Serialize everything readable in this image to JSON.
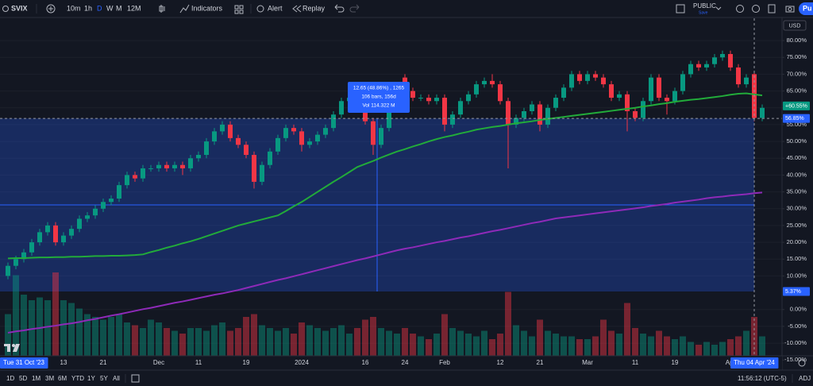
{
  "toolbar": {
    "symbol": "SVIX",
    "intervals": [
      "10m",
      "1h",
      "D",
      "W",
      "M",
      "12M"
    ],
    "indicators": "Indicators",
    "alert": "Alert",
    "replay": "Replay",
    "layout_name": "PUBLIC",
    "save": "Save",
    "publish": "Pu"
  },
  "chart_data": {
    "type": "candlestick",
    "currency": "USD",
    "categories": [
      "Tue 31 Oct '23",
      null,
      null,
      null,
      null,
      null,
      null,
      "13",
      null,
      null,
      null,
      null,
      "21",
      null,
      null,
      null,
      null,
      null,
      null,
      "Dec",
      null,
      null,
      null,
      null,
      "11",
      null,
      null,
      null,
      null,
      null,
      "19",
      null,
      null,
      null,
      null,
      null,
      null,
      "2024",
      null,
      null,
      null,
      null,
      null,
      null,
      null,
      "16",
      null,
      null,
      null,
      null,
      "24",
      null,
      null,
      null,
      null,
      "Feb",
      null,
      null,
      null,
      null,
      null,
      null,
      "12",
      null,
      null,
      null,
      null,
      "21",
      null,
      null,
      null,
      null,
      null,
      "Mar",
      null,
      null,
      null,
      null,
      null,
      "11",
      null,
      null,
      null,
      null,
      "19",
      null,
      null,
      null,
      null,
      null,
      null,
      "Apr",
      null,
      null,
      "Thu 04 Apr '24",
      null
    ],
    "series": [
      {
        "type": "candlestick",
        "up_color": "#089981",
        "down_color": "#f23645",
        "open": [
          10,
          13,
          15,
          17,
          20,
          23,
          25,
          20,
          22,
          24,
          27,
          28,
          30,
          32,
          33,
          37,
          40,
          39,
          42,
          42,
          43,
          42,
          43,
          42,
          45,
          46,
          50,
          53,
          55,
          51,
          49,
          46,
          38,
          43,
          47,
          51,
          54,
          53,
          49,
          50,
          52,
          54,
          58,
          62,
          63,
          61,
          56,
          49,
          54,
          61,
          69,
          65,
          63,
          63,
          62,
          63,
          55,
          58,
          62,
          64,
          67,
          68,
          67,
          62,
          55,
          57,
          59,
          61,
          55,
          60,
          63,
          66,
          70,
          68,
          70,
          69,
          67,
          63,
          64,
          59,
          57,
          62,
          69,
          63,
          62,
          65,
          70,
          73,
          72,
          73,
          75,
          76,
          72,
          67,
          70,
          57
        ],
        "high": [
          14,
          16,
          18,
          21,
          24,
          26,
          26,
          23,
          25,
          28,
          29,
          31,
          33,
          34,
          38,
          41,
          41,
          43,
          43,
          44,
          44,
          44,
          44,
          46,
          47,
          51,
          54,
          56,
          56,
          52,
          50,
          47,
          44,
          48,
          52,
          55,
          55,
          54,
          51,
          53,
          55,
          59,
          63,
          64,
          64,
          62,
          57,
          55,
          62,
          65,
          70,
          66,
          64,
          64,
          64,
          64,
          59,
          63,
          65,
          68,
          69,
          70,
          68,
          63,
          58,
          60,
          62,
          62,
          61,
          64,
          67,
          71,
          71,
          71,
          71,
          70,
          68,
          65,
          65,
          60,
          63,
          70,
          70,
          64,
          66,
          71,
          74,
          74,
          74,
          76,
          77,
          77,
          73,
          70,
          71,
          61
        ],
        "low": [
          9,
          12,
          14,
          16,
          19,
          22,
          19,
          19,
          21,
          23,
          26,
          27,
          29,
          31,
          32,
          36,
          38,
          38,
          41,
          41,
          41,
          41,
          40,
          41,
          44,
          45,
          49,
          52,
          50,
          48,
          45,
          36,
          37,
          42,
          46,
          50,
          52,
          47,
          48,
          49,
          51,
          53,
          57,
          61,
          60,
          55,
          46,
          48,
          53,
          60,
          64,
          62,
          62,
          61,
          61,
          53,
          54,
          57,
          61,
          63,
          66,
          66,
          61,
          42,
          54,
          56,
          58,
          53,
          54,
          59,
          62,
          65,
          67,
          67,
          68,
          66,
          62,
          62,
          53,
          56,
          56,
          61,
          62,
          58,
          61,
          64,
          69,
          71,
          71,
          72,
          74,
          71,
          66,
          66,
          56,
          56
        ],
        "close": [
          13,
          15,
          17,
          20,
          23,
          25,
          20,
          22,
          24,
          27,
          28,
          30,
          32,
          33,
          37,
          40,
          39,
          42,
          42,
          43,
          42,
          43,
          42,
          45,
          46,
          50,
          53,
          55,
          51,
          49,
          46,
          38,
          43,
          47,
          51,
          54,
          53,
          49,
          50,
          52,
          54,
          58,
          62,
          63,
          61,
          56,
          49,
          54,
          61,
          64,
          65,
          63,
          63,
          62,
          63,
          55,
          58,
          62,
          64,
          67,
          68,
          67,
          62,
          55,
          57,
          59,
          61,
          55,
          60,
          63,
          66,
          70,
          68,
          70,
          69,
          67,
          63,
          64,
          59,
          57,
          62,
          69,
          63,
          62,
          65,
          70,
          73,
          72,
          73,
          75,
          76,
          72,
          67,
          69,
          57,
          60
        ],
        "volume": [
          1.5,
          2.9,
          2.2,
          2.0,
          2.1,
          2.0,
          3.0,
          2.0,
          1.9,
          1.7,
          1.5,
          1.4,
          1.3,
          1.4,
          1.5,
          1.2,
          1.1,
          1.0,
          1.3,
          1.2,
          1.0,
          0.9,
          0.8,
          1.0,
          1.0,
          0.9,
          1.1,
          1.2,
          0.9,
          1.0,
          1.4,
          1.5,
          1.1,
          1.0,
          0.9,
          1.0,
          0.8,
          1.2,
          1.1,
          1.0,
          0.9,
          1.0,
          1.1,
          0.8,
          1.0,
          1.3,
          1.4,
          1.0,
          0.9,
          0.8,
          1.0,
          0.8,
          0.7,
          0.6,
          0.8,
          1.5,
          1.0,
          0.9,
          0.8,
          0.7,
          0.9,
          0.6,
          0.8,
          2.3,
          1.1,
          0.9,
          0.7,
          1.3,
          0.9,
          0.8,
          0.7,
          0.7,
          0.6,
          0.6,
          0.7,
          1.3,
          0.9,
          0.8,
          1.9,
          1.0,
          0.8,
          0.7,
          0.9,
          0.7,
          0.6,
          0.7,
          0.5,
          0.4,
          0.5,
          0.4,
          0.5,
          0.6,
          0.7,
          0.9,
          1.4,
          0.7
        ]
      },
      {
        "type": "line",
        "color": "#22ab3a",
        "values": [
          15.2,
          15.3,
          15.3,
          15.4,
          15.5,
          15.5,
          15.6,
          15.6,
          15.7,
          15.7,
          15.8,
          15.9,
          15.9,
          16.0,
          16.0,
          16.1,
          16.2,
          16.4,
          17.1,
          17.7,
          18.4,
          19.0,
          19.7,
          20.3,
          21.0,
          21.8,
          22.6,
          23.4,
          24.2,
          25.0,
          25.6,
          26.2,
          26.8,
          27.4,
          28.0,
          29.3,
          30.7,
          32.0,
          33.5,
          35.0,
          36.5,
          38.0,
          39.4,
          40.9,
          42.4,
          43.3,
          44.2,
          45.2,
          46.1,
          47.0,
          47.7,
          48.5,
          49.2,
          50.0,
          50.7,
          51.3,
          51.8,
          52.4,
          52.9,
          53.5,
          53.9,
          54.3,
          54.6,
          55.0,
          55.4,
          55.7,
          56.0,
          56.4,
          56.7,
          57.0,
          57.3,
          57.6,
          57.9,
          58.2,
          58.5,
          58.8,
          59.1,
          59.4,
          59.7,
          60.0,
          60.4,
          60.7,
          61.1,
          61.4,
          61.8,
          62.1,
          62.4,
          62.6,
          62.9,
          63.2,
          63.5,
          63.9,
          64.2,
          64.3,
          64.0,
          63.7
        ]
      },
      {
        "type": "line",
        "color": "#8e2ab8",
        "values": [
          -6.9,
          -6.5,
          -6.2,
          -5.8,
          -5.5,
          -5.1,
          -4.8,
          -4.4,
          -4.1,
          -3.7,
          -3.2,
          -2.8,
          -2.3,
          -1.8,
          -1.4,
          -0.9,
          -0.4,
          0.1,
          0.5,
          1.0,
          1.5,
          2.0,
          2.4,
          2.9,
          3.4,
          3.9,
          4.4,
          4.8,
          5.3,
          5.8,
          6.4,
          7.0,
          7.6,
          8.2,
          8.8,
          9.3,
          9.9,
          10.5,
          11.1,
          11.7,
          12.3,
          12.9,
          13.5,
          14.1,
          14.7,
          15.2,
          15.8,
          16.4,
          17.0,
          17.6,
          18.1,
          18.5,
          19.0,
          19.5,
          20.0,
          20.4,
          20.9,
          21.4,
          21.8,
          22.3,
          22.8,
          23.3,
          23.7,
          24.2,
          24.7,
          25.2,
          25.7,
          26.1,
          26.6,
          27.1,
          27.4,
          27.7,
          28.0,
          28.3,
          28.6,
          28.9,
          29.2,
          29.5,
          29.8,
          30.1,
          30.4,
          30.8,
          31.1,
          31.4,
          31.8,
          32.1,
          32.4,
          32.7,
          33.1,
          33.4,
          33.6,
          33.9,
          34.1,
          34.3,
          34.6,
          34.8
        ]
      }
    ],
    "ylim": [
      -14,
      86.4
    ],
    "yticks": [
      {
        "value": 80,
        "label": "80.00%"
      },
      {
        "value": 75,
        "label": "75.00%"
      },
      {
        "value": 70,
        "label": "70.00%"
      },
      {
        "value": 65,
        "label": "65.00%"
      },
      {
        "value": 60,
        "label": "60.00%"
      },
      {
        "value": 55,
        "label": "55.00%"
      },
      {
        "value": 50,
        "label": "50.00%"
      },
      {
        "value": 45,
        "label": "45.00%"
      },
      {
        "value": 40,
        "label": "40.00%"
      },
      {
        "value": 35,
        "label": "35.00%"
      },
      {
        "value": 30,
        "label": "30.00%"
      },
      {
        "value": 25,
        "label": "25.00%"
      },
      {
        "value": 20,
        "label": "20.00%"
      },
      {
        "value": 15,
        "label": "15.00%"
      },
      {
        "value": 10,
        "label": "10.00%"
      },
      {
        "value": 0,
        "label": "0.00%"
      },
      {
        "value": -5,
        "label": "-5.00%"
      },
      {
        "value": -10,
        "label": "-10.00%"
      },
      {
        "value": -15,
        "label": "-15.00%"
      }
    ],
    "grid": true,
    "last_price": {
      "value": 60.55,
      "label": "+60.55%"
    },
    "measure": {
      "color": "#2962ff",
      "high": {
        "value": 56.85,
        "label": "56.85%"
      },
      "low": {
        "value": 5.37,
        "label": "5.37%"
      },
      "tooltip": [
        "12.65 (48.86%) , 1265",
        "106 bars, 156d",
        "Vol 114.322 M"
      ]
    }
  },
  "range_bar": {
    "ranges": [
      "1D",
      "5D",
      "1M",
      "3M",
      "6M",
      "YTD",
      "1Y",
      "5Y",
      "All"
    ],
    "clock": "11:56:12 (UTC-5)",
    "adj": "ADJ"
  }
}
